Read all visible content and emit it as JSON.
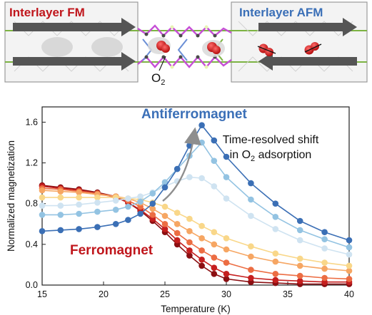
{
  "schematic": {
    "left_title": "Interlayer FM",
    "right_title": "Interlayer AFM",
    "molecule_label": "O",
    "molecule_subscript": "2",
    "fm_color": "#c0161c",
    "afm_color": "#3a6fb7"
  },
  "annotations": {
    "antiferromagnet": "Antiferromagnet",
    "ferromagnet": "Ferromagnet",
    "note_line1": "Time-resolved shift",
    "note_line2_prefix": "in O",
    "note_line2_sub": "2",
    "note_line2_suffix": " adsorption"
  },
  "chart_data": {
    "type": "line",
    "xlabel": "Temperature (K)",
    "ylabel": "Normalized magnetization",
    "xlim": [
      15,
      40
    ],
    "ylim": [
      0,
      1.75
    ],
    "xticks": [
      15,
      20,
      25,
      30,
      35,
      40
    ],
    "yticks": [
      0.0,
      0.4,
      0.8,
      1.2,
      1.6
    ],
    "x": [
      15,
      16.5,
      18,
      19.5,
      21,
      22,
      23,
      24,
      25,
      26,
      27,
      28,
      29,
      30,
      32,
      34,
      36,
      38,
      40
    ],
    "series": [
      {
        "color": "#8b0f12",
        "values": [
          0.98,
          0.96,
          0.94,
          0.91,
          0.87,
          0.81,
          0.73,
          0.63,
          0.52,
          0.4,
          0.29,
          0.19,
          0.11,
          0.06,
          0.03,
          0.02,
          0.01,
          0.01,
          0.01
        ]
      },
      {
        "color": "#c51f1f",
        "values": [
          0.97,
          0.95,
          0.93,
          0.9,
          0.86,
          0.81,
          0.74,
          0.65,
          0.55,
          0.44,
          0.34,
          0.25,
          0.17,
          0.11,
          0.07,
          0.05,
          0.04,
          0.03,
          0.03
        ]
      },
      {
        "color": "#ec6d43",
        "values": [
          0.95,
          0.94,
          0.92,
          0.9,
          0.87,
          0.83,
          0.77,
          0.69,
          0.6,
          0.51,
          0.42,
          0.34,
          0.27,
          0.22,
          0.15,
          0.11,
          0.09,
          0.07,
          0.06
        ]
      },
      {
        "color": "#f6a663",
        "values": [
          0.93,
          0.92,
          0.91,
          0.89,
          0.87,
          0.85,
          0.81,
          0.75,
          0.68,
          0.6,
          0.53,
          0.46,
          0.4,
          0.35,
          0.28,
          0.23,
          0.19,
          0.16,
          0.14
        ]
      },
      {
        "color": "#f9d789",
        "values": [
          0.86,
          0.86,
          0.86,
          0.86,
          0.86,
          0.85,
          0.84,
          0.81,
          0.77,
          0.71,
          0.65,
          0.58,
          0.52,
          0.46,
          0.38,
          0.31,
          0.26,
          0.22,
          0.19
        ]
      },
      {
        "color": "#cfe3f1",
        "values": [
          0.78,
          0.78,
          0.79,
          0.81,
          0.83,
          0.85,
          0.87,
          0.91,
          0.97,
          1.02,
          1.06,
          1.05,
          0.97,
          0.85,
          0.68,
          0.55,
          0.44,
          0.36,
          0.3
        ]
      },
      {
        "color": "#93c3e2",
        "values": [
          0.69,
          0.69,
          0.7,
          0.72,
          0.74,
          0.77,
          0.82,
          0.9,
          1.01,
          1.14,
          1.27,
          1.4,
          1.22,
          1.06,
          0.84,
          0.67,
          0.54,
          0.45,
          0.37
        ]
      },
      {
        "color": "#3b6fb5",
        "values": [
          0.53,
          0.54,
          0.55,
          0.57,
          0.6,
          0.64,
          0.7,
          0.8,
          0.96,
          1.14,
          1.37,
          1.57,
          1.42,
          1.26,
          1.0,
          0.8,
          0.63,
          0.52,
          0.44
        ]
      }
    ]
  }
}
